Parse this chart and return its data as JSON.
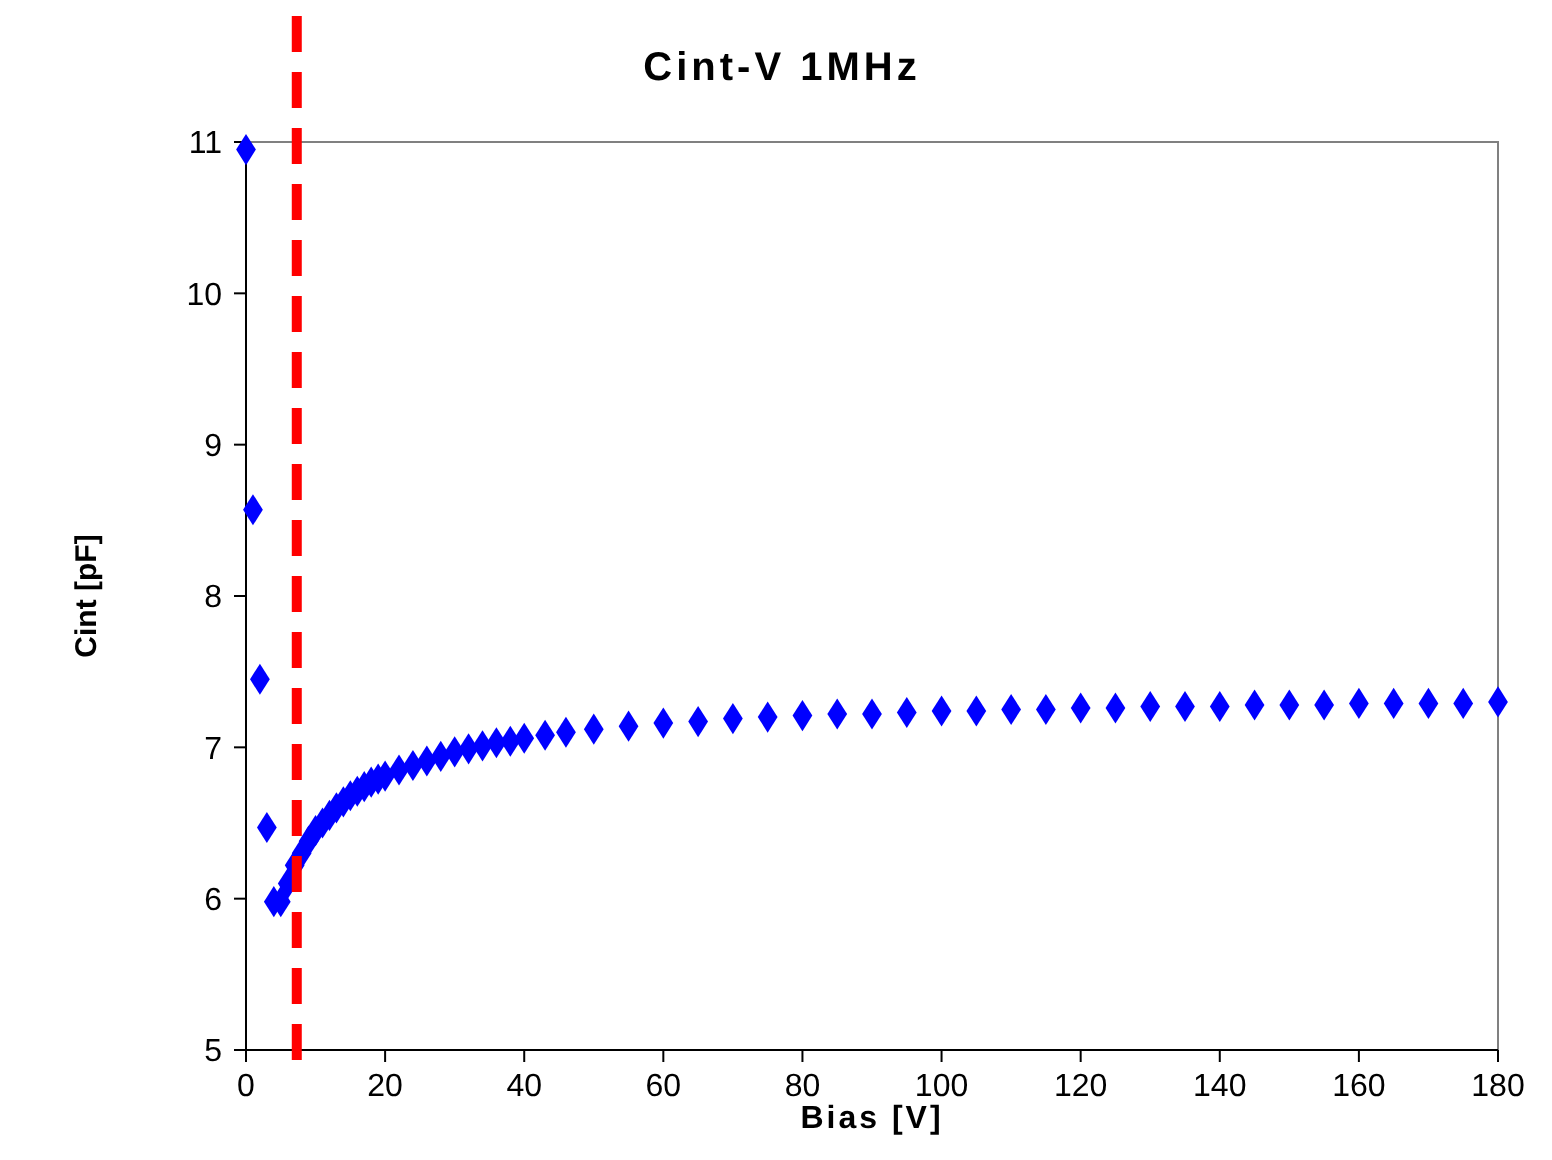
{
  "chart_data": {
    "type": "scatter",
    "title": "Cint-V 1MHz",
    "xlabel": "Bias [V]",
    "ylabel": "Cint [pF]",
    "x": [
      0,
      1,
      2,
      3,
      4,
      5,
      6,
      7,
      8,
      9,
      10,
      11,
      12,
      13,
      14,
      15,
      16,
      17,
      18,
      19,
      20,
      22,
      24,
      26,
      28,
      30,
      32,
      34,
      36,
      38,
      40,
      43,
      46,
      50,
      55,
      60,
      65,
      70,
      75,
      80,
      85,
      90,
      95,
      100,
      105,
      110,
      115,
      120,
      125,
      130,
      135,
      140,
      145,
      150,
      155,
      160,
      165,
      170,
      175,
      180
    ],
    "series": [
      {
        "color": "#0000ff",
        "values": [
          10.95,
          8.57,
          7.45,
          6.47,
          5.98,
          5.98,
          6.1,
          6.22,
          6.3,
          6.38,
          6.45,
          6.5,
          6.55,
          6.6,
          6.64,
          6.68,
          6.71,
          6.74,
          6.77,
          6.79,
          6.81,
          6.85,
          6.88,
          6.91,
          6.94,
          6.97,
          6.99,
          7.01,
          7.03,
          7.04,
          7.06,
          7.08,
          7.1,
          7.12,
          7.14,
          7.16,
          7.17,
          7.19,
          7.2,
          7.21,
          7.22,
          7.22,
          7.23,
          7.24,
          7.24,
          7.25,
          7.25,
          7.26,
          7.26,
          7.27,
          7.27,
          7.27,
          7.28,
          7.28,
          7.28,
          7.29,
          7.29,
          7.29,
          7.29,
          7.3
        ]
      }
    ],
    "xlim": [
      0,
      180
    ],
    "xticks": [
      0,
      20,
      40,
      60,
      80,
      100,
      120,
      140,
      160,
      180
    ],
    "ylim": [
      5,
      11
    ],
    "yticks": [
      5,
      6,
      7,
      8,
      9,
      10,
      11
    ],
    "marker": "diamond",
    "grid": false,
    "ref_lines": [
      {
        "axis": "x",
        "value": 7.3,
        "color": "#ff0000",
        "line_style": "dashed"
      }
    ]
  }
}
